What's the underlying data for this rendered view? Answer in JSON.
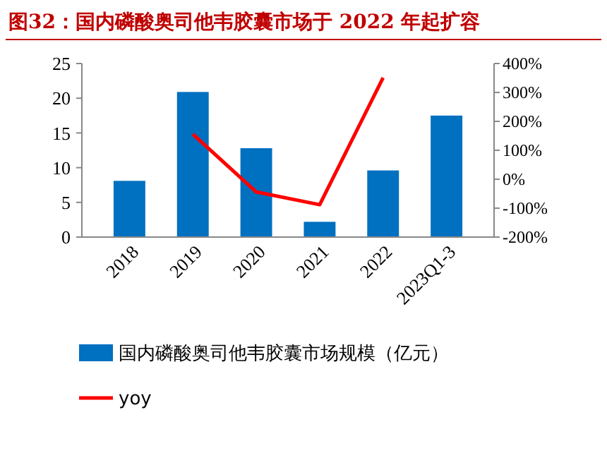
{
  "chart_data": {
    "type": "bar",
    "title": "图32：国内磷酸奥司他韦胶囊市场于 2022 年起扩容",
    "categories": [
      "2018",
      "2019",
      "2020",
      "2021",
      "2022",
      "2023Q1-3"
    ],
    "series": [
      {
        "name": "国内磷酸奥司他韦胶囊市场规模（亿元）",
        "color": "#0070c0",
        "values": [
          8.1,
          20.9,
          12.8,
          2.2,
          9.6,
          17.5
        ]
      },
      {
        "name": "yoy",
        "type": "line",
        "axis": "y2",
        "color": "#ff0000",
        "values": [
          null,
          156,
          -44,
          -88,
          351,
          null
        ]
      }
    ],
    "ylim": [
      0,
      25
    ],
    "yticks": [
      0,
      5,
      10,
      15,
      20,
      25
    ],
    "y2lim": [
      -200,
      400
    ],
    "y2ticks": [
      {
        "value": -200,
        "label": "-200%"
      },
      {
        "value": -100,
        "label": "-100%"
      },
      {
        "value": 0,
        "label": "0%"
      },
      {
        "value": 100,
        "label": "100%"
      },
      {
        "value": 200,
        "label": "200%"
      },
      {
        "value": 300,
        "label": "300%"
      },
      {
        "value": 400,
        "label": "400%"
      }
    ],
    "legend": "bottom",
    "marker": "none",
    "line_style": "solid"
  }
}
